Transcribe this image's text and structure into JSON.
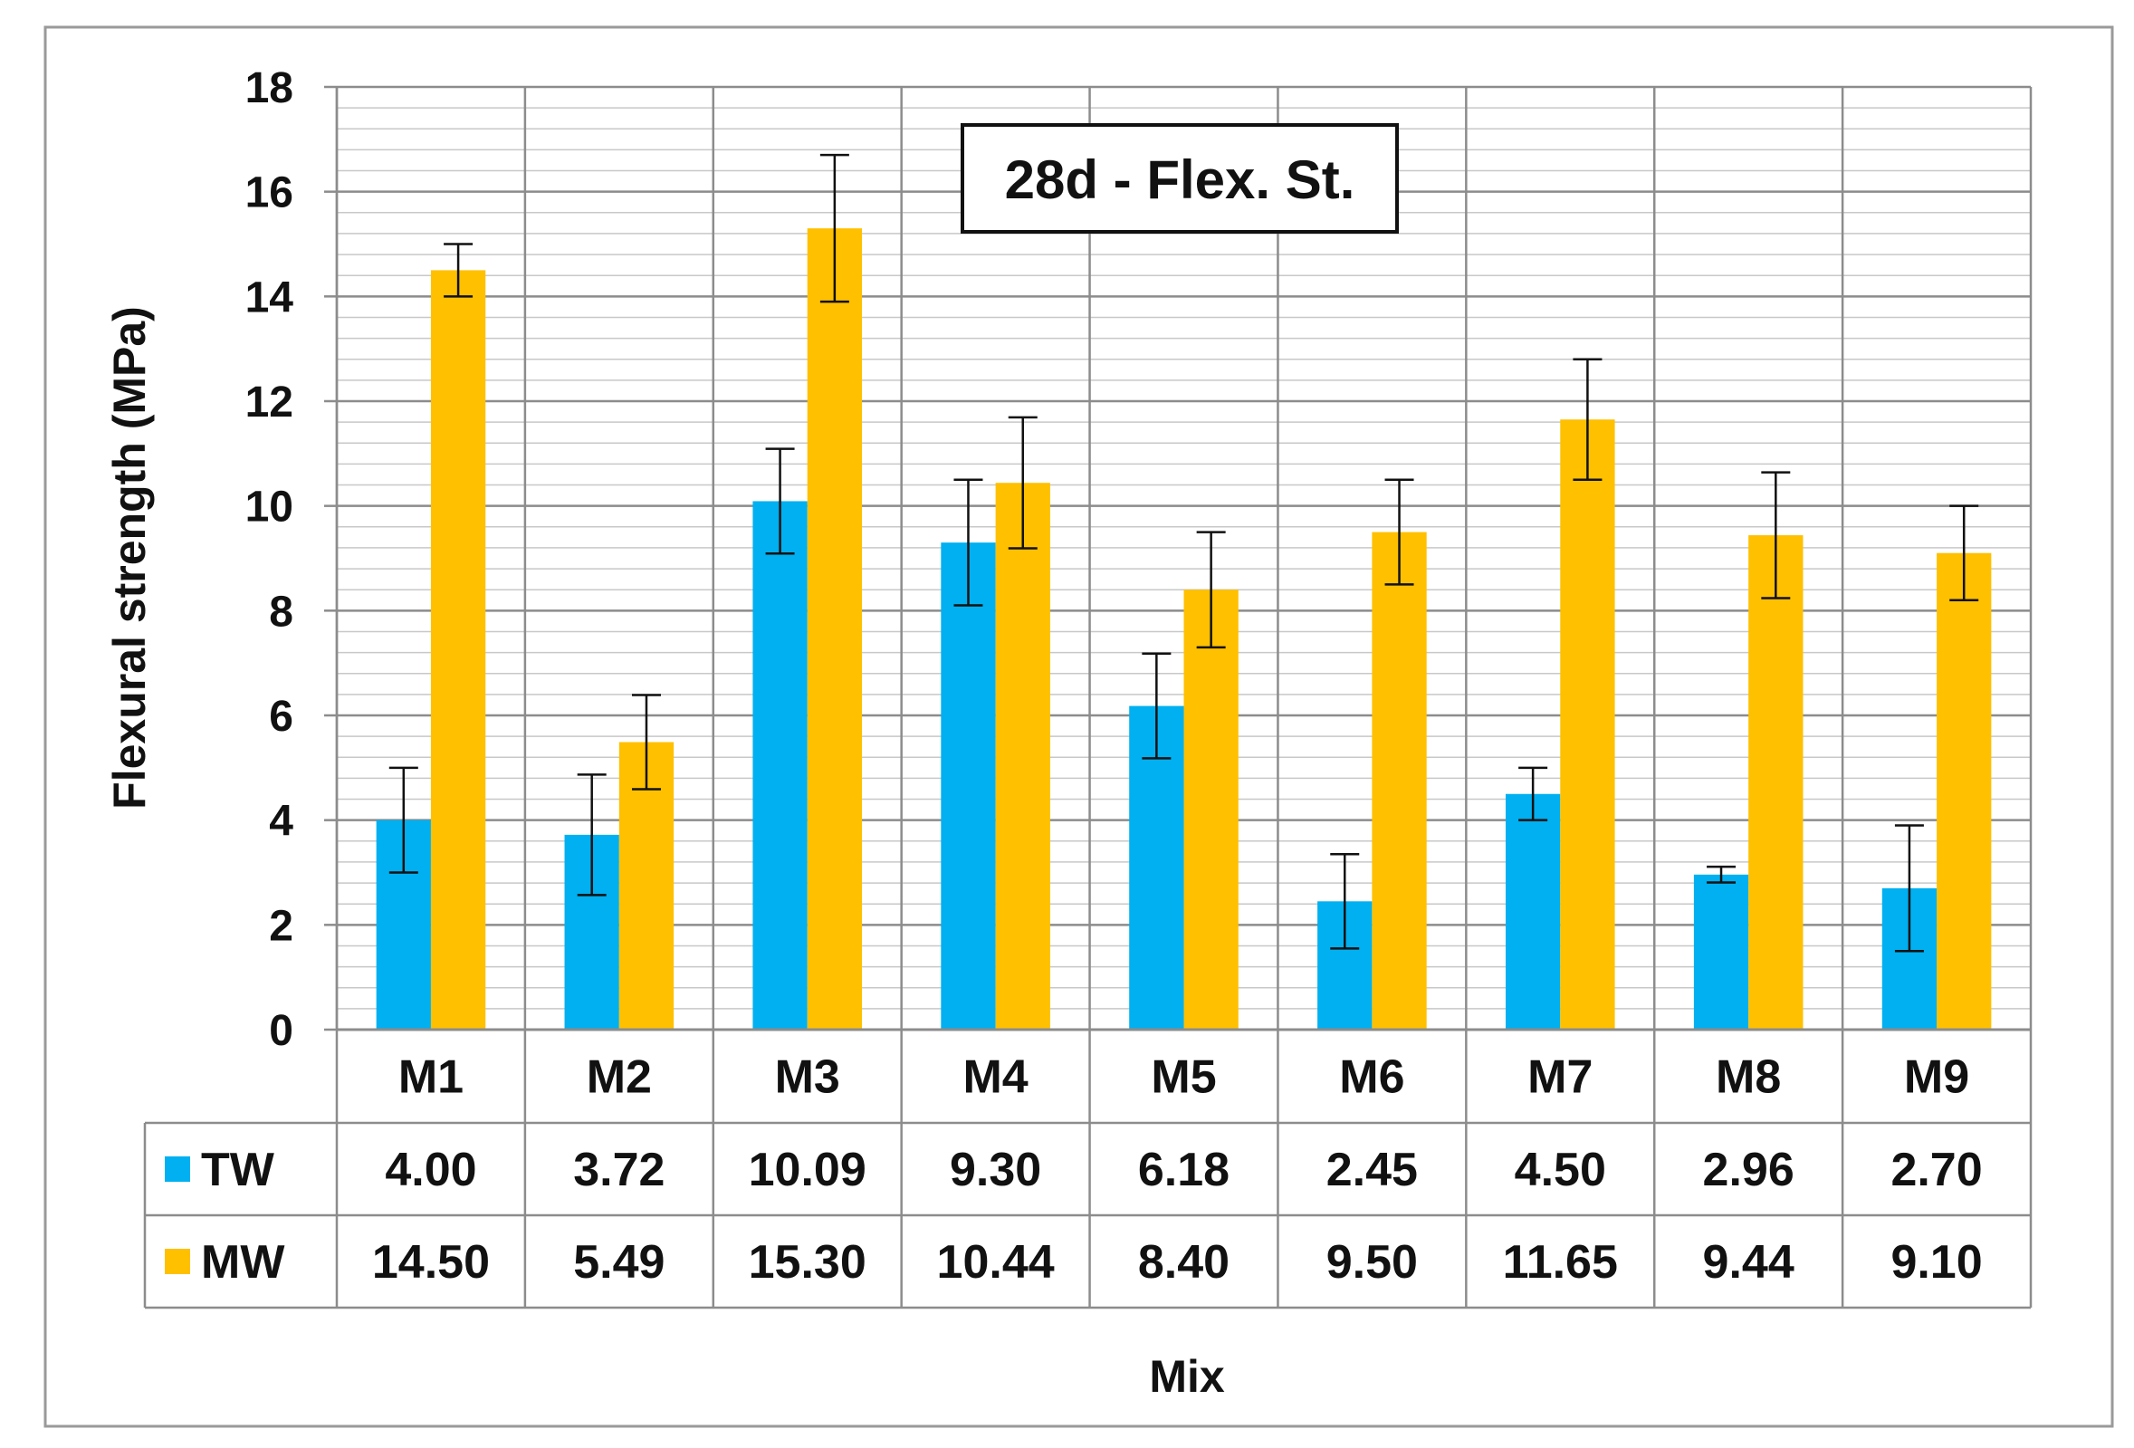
{
  "chart_data": {
    "type": "bar",
    "title": "28d - Flex. St.",
    "xlabel": "Mix",
    "ylabel": "Flexural strength (MPa)",
    "ylim": [
      0,
      18
    ],
    "ytick_step": 2,
    "minor_grid_step": 0.4,
    "grid": true,
    "legend_placement": "data-table-left",
    "categories": [
      "M1",
      "M2",
      "M3",
      "M4",
      "M5",
      "M6",
      "M7",
      "M8",
      "M9"
    ],
    "series": [
      {
        "name": "TW",
        "color": "#00B0F0",
        "values": [
          4.0,
          3.72,
          10.09,
          9.3,
          6.18,
          2.45,
          4.5,
          2.96,
          2.7
        ],
        "labels": [
          "4.00",
          "3.72",
          "10.09",
          "9.30",
          "6.18",
          "2.45",
          "4.50",
          "2.96",
          "2.70"
        ],
        "error": [
          1.0,
          1.15,
          1.0,
          1.2,
          1.0,
          0.9,
          0.5,
          0.15,
          1.2
        ]
      },
      {
        "name": "MW",
        "color": "#FFC000",
        "values": [
          14.5,
          5.49,
          15.3,
          10.44,
          8.4,
          9.5,
          11.65,
          9.44,
          9.1
        ],
        "labels": [
          "14.50",
          "5.49",
          "15.30",
          "10.44",
          "8.40",
          "9.50",
          "11.65",
          "9.44",
          "9.10"
        ],
        "error": [
          0.5,
          0.9,
          1.4,
          1.25,
          1.1,
          1.0,
          1.15,
          1.2,
          0.9
        ]
      }
    ]
  }
}
